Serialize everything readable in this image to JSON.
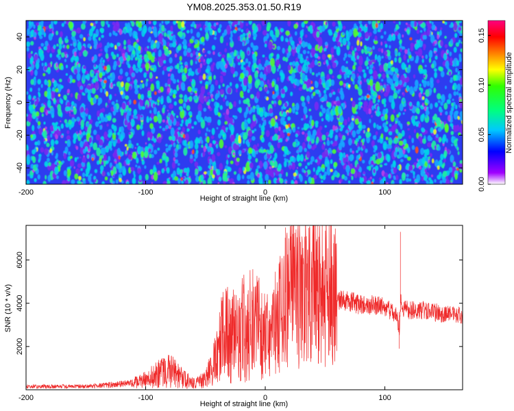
{
  "figure": {
    "title": "YM08.2025.353.01.50.R19"
  },
  "colors": {
    "signal_line": "#ef2a2a",
    "spectrogram_background": "#2d3cf0",
    "frame": "#000000"
  },
  "chart_data": [
    {
      "type": "heatmap",
      "name": "spectrogram",
      "xlabel": "Height of straight line (km)",
      "ylabel": "Frequency (Hz)",
      "xlim": [
        -200,
        165
      ],
      "ylim": [
        -50,
        50
      ],
      "x_ticks": [
        -200,
        -100,
        0,
        100
      ],
      "y_ticks": [
        -40,
        -20,
        0,
        20,
        40
      ],
      "z_description": "noise-like speckle, mostly 0.03-0.06 with scattered peaks up to ~0.15",
      "colorbar": {
        "label": "Normalized spectral amplitude",
        "range": [
          0.0,
          0.165
        ],
        "ticks": [
          "0.00",
          "0.05",
          "0.10",
          "0.15"
        ],
        "colors": [
          "#ffffff",
          "#a000ff",
          "#0000ff",
          "#00c8ff",
          "#00ff80",
          "#30ff00",
          "#ffff00",
          "#ff8000",
          "#ff0000",
          "#ff0080"
        ]
      }
    },
    {
      "type": "line",
      "name": "snr",
      "xlabel": "Height of straight line (km)",
      "ylabel": "SNR (10 * v/v)",
      "xlim": [
        -200,
        165
      ],
      "ylim": [
        0,
        7600
      ],
      "x_ticks": [
        -200,
        -100,
        0,
        100
      ],
      "y_ticks": [
        2000,
        4000,
        6000
      ],
      "series": [
        {
          "name": "SNR",
          "x": [
            -200,
            -150,
            -110,
            -95,
            -80,
            -72,
            -60,
            -50,
            -40,
            -36,
            -30,
            -20,
            -10,
            0,
            5,
            10,
            17,
            22,
            28,
            33,
            38,
            44,
            50,
            55,
            60,
            70,
            80,
            90,
            100,
            106,
            110,
            112,
            113,
            115,
            120,
            130,
            140,
            150,
            165
          ],
          "y": [
            150,
            160,
            300,
            600,
            950,
            600,
            300,
            450,
            1500,
            2500,
            2600,
            2800,
            3200,
            2600,
            2600,
            3500,
            4500,
            4800,
            4300,
            4300,
            4600,
            4500,
            4700,
            4500,
            4100,
            4100,
            3900,
            3950,
            3800,
            3600,
            3400,
            2600,
            4000,
            3800,
            3700,
            3700,
            3600,
            3500,
            3450
          ]
        }
      ],
      "annotations": [
        {
          "x": 17,
          "y": 7500,
          "text": ""
        },
        {
          "x": 44,
          "y": 7600,
          "text": ""
        },
        {
          "x": 113,
          "y": 7300,
          "text": ""
        }
      ]
    }
  ]
}
